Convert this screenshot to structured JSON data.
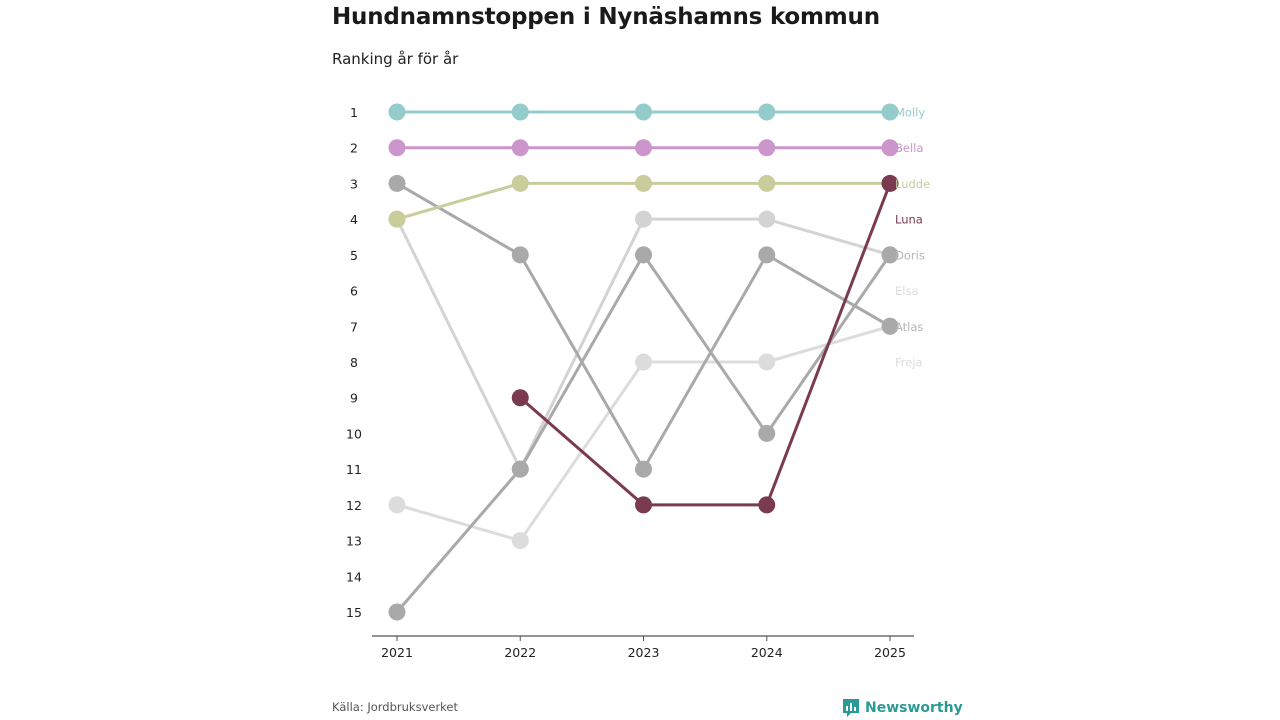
{
  "chart_data": {
    "type": "line",
    "subtype": "bump",
    "title": "Hundnamnstoppen i Nynäshamns kommun",
    "subtitle": "Ranking år för år",
    "x": [
      "2021",
      "2022",
      "2023",
      "2024",
      "2025"
    ],
    "ranks": [
      "1",
      "2",
      "3",
      "4",
      "5",
      "6",
      "7",
      "8",
      "9",
      "10",
      "11",
      "12",
      "13",
      "14",
      "15"
    ],
    "ylim": [
      1,
      15
    ],
    "y_inverted": true,
    "series": [
      {
        "name": "Freja",
        "color": "#dcdcdc",
        "label_color": "#dcdcdc",
        "values": [
          12,
          13,
          8,
          8,
          7
        ]
      },
      {
        "name": "Elsa",
        "color": "#d3d3d3",
        "label_color": "#dcdcdc",
        "values": [
          4,
          11,
          4,
          4,
          5
        ]
      },
      {
        "name": "Atlas",
        "color": "#a9a9a9",
        "label_color": "#b5b5b5",
        "values": [
          15,
          11,
          5,
          10,
          5
        ]
      },
      {
        "name": "Doris",
        "color": "#a9a9a9",
        "label_color": "#b5b5b5",
        "values": [
          3,
          5,
          11,
          5,
          7
        ]
      },
      {
        "name": "Ludde",
        "color": "#c9cd9b",
        "label_color": "#c9cd9b",
        "values": [
          4,
          3,
          3,
          3,
          3
        ]
      },
      {
        "name": "Bella",
        "color": "#cc96cc",
        "label_color": "#cc96cc",
        "values": [
          2,
          2,
          2,
          2,
          2
        ]
      },
      {
        "name": "Molly",
        "color": "#94cccb",
        "label_color": "#94cccb",
        "values": [
          1,
          1,
          1,
          1,
          1
        ]
      },
      {
        "name": "Luna",
        "color": "#7a3a50",
        "label_color": "#7a3a50",
        "values": [
          null,
          9,
          12,
          12,
          3
        ]
      }
    ],
    "legend_order": [
      "Molly",
      "Bella",
      "Ludde",
      "Luna",
      "Doris",
      "Elsa",
      "Atlas",
      "Freja"
    ],
    "xlabel": "",
    "ylabel": "",
    "grid": false
  },
  "footer": {
    "source": "Källa: Jordbruksverket",
    "brand": "Newsworthy"
  },
  "colors": {
    "brand": "#2a9a96",
    "axis": "#555555"
  }
}
